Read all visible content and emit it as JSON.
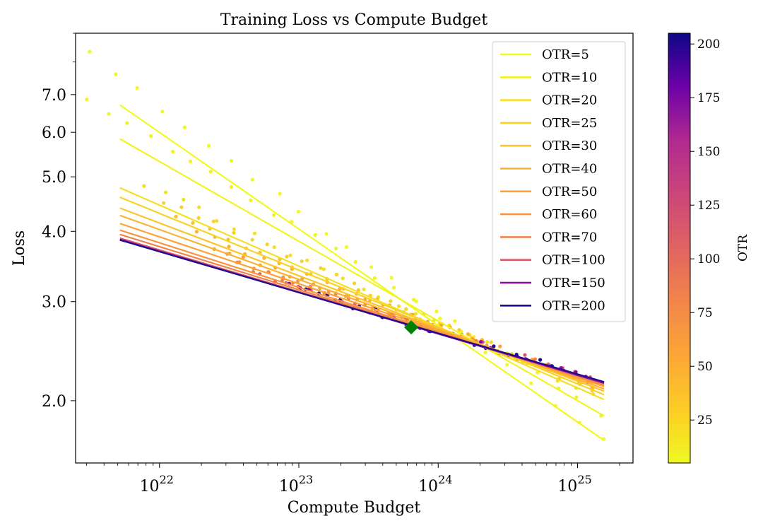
{
  "chart_data": {
    "type": "line",
    "title": "Training Loss vs Compute Budget",
    "xlabel": "Compute Budget",
    "ylabel": "Loss",
    "x_scale": "log",
    "y_scale": "log",
    "xlim": [
      2.5e+21,
      2.5e+25
    ],
    "ylim": [
      1.55,
      9.0
    ],
    "x_ticks": [
      {
        "value": 1e+22,
        "base": "10",
        "exp": "22"
      },
      {
        "value": 1e+23,
        "base": "10",
        "exp": "23"
      },
      {
        "value": 1e+24,
        "base": "10",
        "exp": "24"
      },
      {
        "value": 1e+25,
        "base": "10",
        "exp": "25"
      }
    ],
    "y_ticks": [
      {
        "value": 2.0,
        "label": "2.0"
      },
      {
        "value": 3.0,
        "label": "3.0"
      },
      {
        "value": 4.0,
        "label": "4.0"
      },
      {
        "value": 5.0,
        "label": "5.0"
      },
      {
        "value": 6.0,
        "label": "6.0"
      },
      {
        "value": 7.0,
        "label": "7.0"
      }
    ],
    "grid": false,
    "legend_position": "top-right",
    "fit_range": [
      5.2e+21,
      1.55e+25
    ],
    "series": [
      {
        "name": "OTR=5",
        "otr": 5,
        "color": "#f0f921",
        "y_start": 6.71,
        "y_end": 1.7
      },
      {
        "name": "OTR=10",
        "otr": 10,
        "color": "#f1f325",
        "y_start": 5.84,
        "y_end": 1.88
      },
      {
        "name": "OTR=20",
        "otr": 20,
        "color": "#f5de26",
        "y_start": 4.78,
        "y_end": 2.01
      },
      {
        "name": "OTR=25",
        "otr": 25,
        "color": "#f8d227",
        "y_start": 4.6,
        "y_end": 2.05
      },
      {
        "name": "OTR=30",
        "otr": 30,
        "color": "#fbc52a",
        "y_start": 4.4,
        "y_end": 2.08
      },
      {
        "name": "OTR=40",
        "otr": 40,
        "color": "#fdb130",
        "y_start": 4.27,
        "y_end": 2.1
      },
      {
        "name": "OTR=50",
        "otr": 50,
        "color": "#fca236",
        "y_start": 4.13,
        "y_end": 2.12
      },
      {
        "name": "OTR=60",
        "otr": 60,
        "color": "#f89440",
        "y_start": 4.02,
        "y_end": 2.13
      },
      {
        "name": "OTR=70",
        "otr": 70,
        "color": "#f1844b",
        "y_start": 3.95,
        "y_end": 2.14
      },
      {
        "name": "OTR=100",
        "otr": 100,
        "color": "#da5a6a",
        "y_start": 3.89,
        "y_end": 2.15
      },
      {
        "name": "OTR=150",
        "otr": 150,
        "color": "#8b09a5",
        "y_start": 3.87,
        "y_end": 2.15
      },
      {
        "name": "OTR=200",
        "otr": 200,
        "color": "#1c0c8b",
        "y_start": 3.86,
        "y_end": 2.16
      }
    ],
    "optimum_marker": {
      "x": 6.4e+23,
      "y": 2.7,
      "color": "#008000",
      "shape": "diamond"
    },
    "colorbar": {
      "label": "OTR",
      "range": [
        5,
        205
      ],
      "ticks": [
        25,
        50,
        75,
        100,
        125,
        150,
        175,
        200
      ],
      "colormap": "plasma_r"
    }
  }
}
